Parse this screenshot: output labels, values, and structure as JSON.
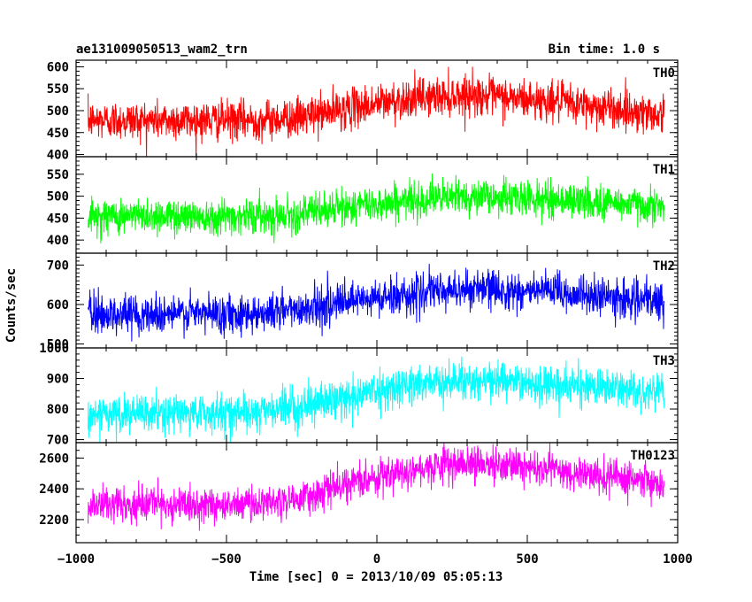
{
  "header": {
    "left": "ae131009050513_wam2_trn",
    "right": "Bin time: 1.0 s"
  },
  "ylabel": "Counts/sec",
  "xlabel": "Time [sec] 0 = 2013/10/09 05:05:13",
  "xlim": [
    -1000,
    1000
  ],
  "xticks": [
    -1000,
    -500,
    0,
    500,
    1000
  ],
  "chart_data": {
    "type": "line",
    "x_range": [
      -960,
      955
    ],
    "x_step": 1,
    "xlim": [
      -1000,
      1000
    ],
    "series": [
      {
        "name": "TH0",
        "color": "#ff0000",
        "ylim": [
          395,
          615
        ],
        "yticks": [
          400,
          450,
          500,
          550,
          600
        ],
        "trend": [
          [
            -960,
            478
          ],
          [
            -400,
            478
          ],
          [
            -250,
            485
          ],
          [
            -100,
            505
          ],
          [
            100,
            527
          ],
          [
            300,
            537
          ],
          [
            600,
            520
          ],
          [
            955,
            490
          ]
        ],
        "noise_sd": 22
      },
      {
        "name": "TH1",
        "color": "#00ff00",
        "ylim": [
          370,
          590
        ],
        "yticks": [
          400,
          450,
          500,
          550
        ],
        "trend": [
          [
            -960,
            455
          ],
          [
            -400,
            455
          ],
          [
            -250,
            460
          ],
          [
            -100,
            475
          ],
          [
            100,
            490
          ],
          [
            300,
            500
          ],
          [
            600,
            492
          ],
          [
            955,
            478
          ]
        ],
        "noise_sd": 20
      },
      {
        "name": "TH2",
        "color": "#0000ff",
        "ylim": [
          490,
          730
        ],
        "yticks": [
          500,
          600,
          700
        ],
        "trend": [
          [
            -960,
            575
          ],
          [
            -400,
            578
          ],
          [
            -250,
            590
          ],
          [
            -100,
            605
          ],
          [
            100,
            625
          ],
          [
            300,
            640
          ],
          [
            600,
            630
          ],
          [
            955,
            605
          ]
        ],
        "noise_sd": 24
      },
      {
        "name": "TH3",
        "color": "#00ffff",
        "ylim": [
          690,
          1000
        ],
        "yticks": [
          700,
          800,
          900,
          1000
        ],
        "trend": [
          [
            -960,
            780
          ],
          [
            -400,
            790
          ],
          [
            -250,
            810
          ],
          [
            -100,
            840
          ],
          [
            100,
            880
          ],
          [
            300,
            895
          ],
          [
            600,
            880
          ],
          [
            955,
            855
          ]
        ],
        "noise_sd": 30
      },
      {
        "name": "TH0123",
        "color": "#ff00ff",
        "ylim": [
          2050,
          2700
        ],
        "yticks": [
          2200,
          2400,
          2600
        ],
        "trend": [
          [
            -960,
            2290
          ],
          [
            -400,
            2300
          ],
          [
            -250,
            2340
          ],
          [
            -100,
            2430
          ],
          [
            100,
            2530
          ],
          [
            300,
            2570
          ],
          [
            600,
            2520
          ],
          [
            955,
            2430
          ]
        ],
        "noise_sd": 55
      }
    ]
  }
}
